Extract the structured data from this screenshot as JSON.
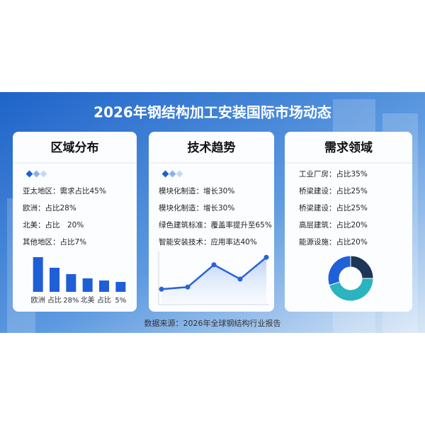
{
  "title": "2026年钢结构加工安装国际市场动态",
  "source": "数据来源：2026年全球钢结构行业报告",
  "panels": [
    {
      "title": "区域分布",
      "items": [
        "亚太地区：需求占比45%",
        "欧洲：占比28%",
        "北美：占比　20%",
        "其他地区：占比7%"
      ]
    },
    {
      "title": "技术趋势",
      "items": [
        "模块化制造：增长30%",
        "模块化制造：增长30%",
        "绿色建筑标准：覆盖率提升至65%",
        "智能安装技术：应用率达40%"
      ]
    },
    {
      "title": "需求领域",
      "items": [
        "工业厂房：占比35%",
        "桥梁建设：占比25%",
        "桥梁建设：占比25%",
        "高层建筑：占比20%",
        "能源设施：占比20%"
      ]
    }
  ],
  "chart_data": [
    {
      "type": "bar",
      "categories": [
        "欧洲",
        "占比",
        "28%",
        "北美",
        "占比",
        "5%"
      ],
      "values": [
        49,
        34,
        25,
        19,
        16,
        14
      ],
      "color": "#1f5fd6",
      "ylim": [
        0,
        50
      ]
    },
    {
      "type": "line",
      "categories": [
        null,
        null,
        null,
        null,
        null
      ],
      "values": [
        29,
        33,
        75,
        48,
        89
      ],
      "color": "#2a64d8",
      "ylim": [
        0,
        100
      ]
    },
    {
      "type": "pie",
      "values": [
        25,
        45,
        30
      ],
      "colors": [
        "#1d3557",
        "#2bb3c0",
        "#2061d8"
      ]
    }
  ]
}
